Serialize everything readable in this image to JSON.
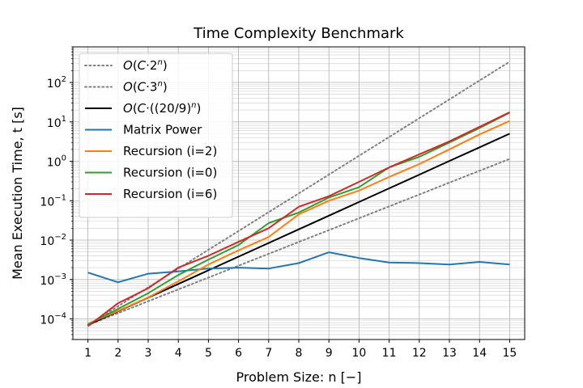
{
  "chart_data": {
    "type": "line",
    "title": "Time Complexity Benchmark",
    "xlabel": "Problem Size: n [−]",
    "ylabel": "Mean Execution Time, t [s]",
    "yscale": "log",
    "xlim": [
      0.5,
      15.5
    ],
    "ylim": [
      3e-05,
      800
    ],
    "x": [
      1,
      2,
      3,
      4,
      5,
      6,
      7,
      8,
      9,
      10,
      11,
      12,
      13,
      14,
      15
    ],
    "x_tick_labels": [
      "1",
      "2",
      "3",
      "4",
      "5",
      "6",
      "7",
      "8",
      "9",
      "10",
      "11",
      "12",
      "13",
      "14",
      "15"
    ],
    "y_ticks": [
      {
        "value": 0.0001,
        "base": "10",
        "exp": "−4"
      },
      {
        "value": 0.001,
        "base": "10",
        "exp": "−3"
      },
      {
        "value": 0.01,
        "base": "10",
        "exp": "−2"
      },
      {
        "value": 0.1,
        "base": "10",
        "exp": "−1"
      },
      {
        "value": 1,
        "base": "10",
        "exp": "0"
      },
      {
        "value": 10,
        "base": "10",
        "exp": "1"
      },
      {
        "value": 100,
        "base": "10",
        "exp": "2"
      }
    ],
    "grid": true,
    "legend_position": "top-left",
    "series": [
      {
        "name": "O(C·2ⁿ)",
        "color": "#808080",
        "style": "dotted",
        "values": [
          7e-05,
          0.00014,
          0.00028,
          0.00056,
          0.00112,
          0.00224,
          0.00448,
          0.00896,
          0.0179,
          0.0358,
          0.0717,
          0.143,
          0.287,
          0.573,
          1.15
        ]
      },
      {
        "name": "O(C·3ⁿ)",
        "color": "#808080",
        "style": "dotted",
        "values": [
          7e-05,
          0.00021,
          0.00063,
          0.00189,
          0.00567,
          0.017,
          0.051,
          0.153,
          0.459,
          1.38,
          4.13,
          12.4,
          37.2,
          112,
          335
        ]
      },
      {
        "name": "O(C·(20/9)ⁿ)",
        "color": "#000000",
        "style": "solid",
        "values": [
          7e-05,
          0.000156,
          0.000346,
          0.00077,
          0.00171,
          0.0038,
          0.00844,
          0.0188,
          0.0417,
          0.0926,
          0.206,
          0.457,
          1.02,
          2.26,
          5.02
        ]
      },
      {
        "name": "Matrix Power",
        "color": "#1f77b4",
        "style": "solid",
        "values": [
          0.0015,
          0.00085,
          0.0014,
          0.0016,
          0.0019,
          0.002,
          0.0019,
          0.0026,
          0.0049,
          0.0035,
          0.0027,
          0.0026,
          0.0024,
          0.0028,
          0.0024
        ]
      },
      {
        "name": "Recursion (i=2)",
        "color": "#ff7f0e",
        "style": "solid",
        "values": [
          7.5e-05,
          0.00016,
          0.00035,
          0.0009,
          0.0024,
          0.0055,
          0.012,
          0.045,
          0.1,
          0.18,
          0.4,
          0.85,
          2.0,
          4.8,
          10.5
        ]
      },
      {
        "name": "Recursion (i=0)",
        "color": "#2ca02c",
        "style": "solid",
        "values": [
          7.2e-05,
          0.00018,
          0.00045,
          0.0013,
          0.0032,
          0.0075,
          0.027,
          0.05,
          0.12,
          0.22,
          0.7,
          1.3,
          3.0,
          7.0,
          17
        ]
      },
      {
        "name": "Recursion (i=6)",
        "color": "#d62728",
        "style": "solid",
        "values": [
          6.5e-05,
          0.00025,
          0.0006,
          0.002,
          0.004,
          0.009,
          0.02,
          0.07,
          0.13,
          0.3,
          0.7,
          1.5,
          3.2,
          7.5,
          17.5
        ]
      }
    ]
  }
}
